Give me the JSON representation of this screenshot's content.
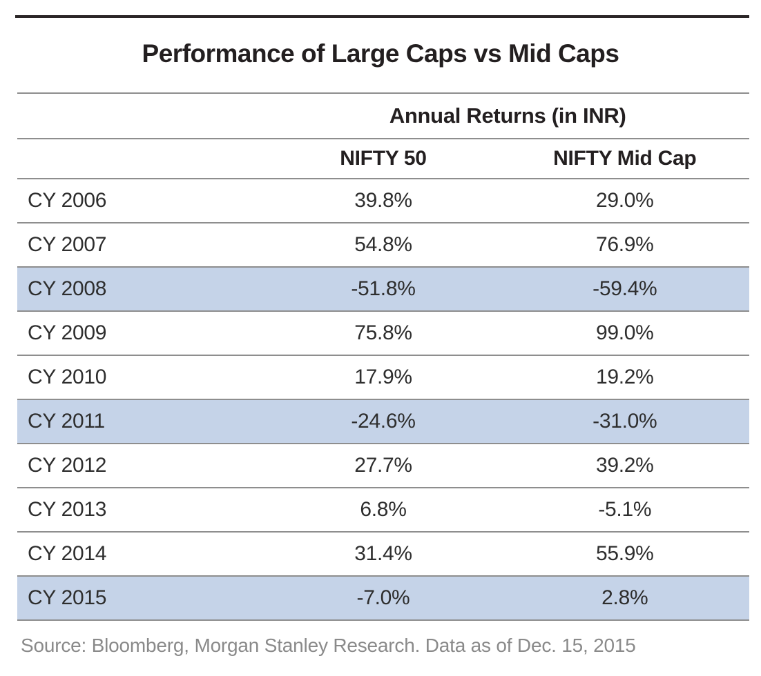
{
  "title": "Performance of Large Caps vs Mid Caps",
  "table": {
    "group_header": "Annual Returns (in INR)",
    "columns": {
      "year": "",
      "nifty50": "NIFTY 50",
      "midcap": "NIFTY Mid Cap"
    },
    "rows": [
      {
        "year": "CY 2006",
        "nifty50": "39.8%",
        "midcap": "29.0%",
        "highlight": false
      },
      {
        "year": "CY 2007",
        "nifty50": "54.8%",
        "midcap": "76.9%",
        "highlight": false
      },
      {
        "year": "CY 2008",
        "nifty50": "-51.8%",
        "midcap": "-59.4%",
        "highlight": true
      },
      {
        "year": "CY 2009",
        "nifty50": "75.8%",
        "midcap": "99.0%",
        "highlight": false
      },
      {
        "year": "CY 2010",
        "nifty50": "17.9%",
        "midcap": "19.2%",
        "highlight": false
      },
      {
        "year": "CY 2011",
        "nifty50": "-24.6%",
        "midcap": "-31.0%",
        "highlight": true
      },
      {
        "year": "CY 2012",
        "nifty50": "27.7%",
        "midcap": "39.2%",
        "highlight": false
      },
      {
        "year": "CY 2013",
        "nifty50": "6.8%",
        "midcap": "-5.1%",
        "highlight": false
      },
      {
        "year": "CY 2014",
        "nifty50": "31.4%",
        "midcap": "55.9%",
        "highlight": false
      },
      {
        "year": "CY 2015",
        "nifty50": "-7.0%",
        "midcap": "2.8%",
        "highlight": true
      }
    ]
  },
  "source": "Source: Bloomberg, Morgan Stanley Research. Data as of Dec. 15, 2015",
  "colors": {
    "highlight": "#c5d3e8",
    "rule": "#2b2627",
    "separator": "#8e8e8e",
    "title_text": "#231f20",
    "body_text": "#2e2e2e",
    "source_text": "#8a8a8a"
  },
  "chart_data": {
    "type": "table",
    "title": "Performance of Large Caps vs Mid Caps",
    "group_header": "Annual Returns (in INR)",
    "categories": [
      "CY 2006",
      "CY 2007",
      "CY 2008",
      "CY 2009",
      "CY 2010",
      "CY 2011",
      "CY 2012",
      "CY 2013",
      "CY 2014",
      "CY 2015"
    ],
    "series": [
      {
        "name": "NIFTY 50",
        "values": [
          39.8,
          54.8,
          -51.8,
          75.8,
          17.9,
          -24.6,
          27.7,
          6.8,
          31.4,
          -7.0
        ]
      },
      {
        "name": "NIFTY Mid Cap",
        "values": [
          29.0,
          76.9,
          -59.4,
          99.0,
          19.2,
          -31.0,
          39.2,
          -5.1,
          55.9,
          2.8
        ]
      }
    ],
    "units": "percent",
    "highlighted_rows": [
      "CY 2008",
      "CY 2011",
      "CY 2015"
    ],
    "source": "Source: Bloomberg, Morgan Stanley Research. Data as of Dec. 15, 2015"
  }
}
